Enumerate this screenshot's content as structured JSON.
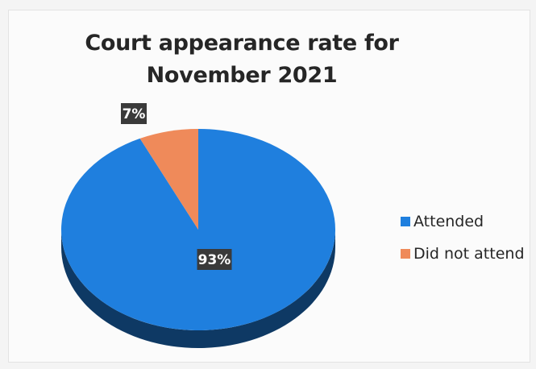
{
  "chart_data": {
    "type": "pie",
    "title": [
      "Court appearance rate for",
      "November 2021"
    ],
    "slices": [
      {
        "label": "Attended",
        "value": 93,
        "display": "93%",
        "color": "#1f7fde"
      },
      {
        "label": "Did not attend",
        "value": 7,
        "display": "7%",
        "color": "#ef8a5a"
      }
    ],
    "legend_position": "right",
    "style": "3d"
  }
}
